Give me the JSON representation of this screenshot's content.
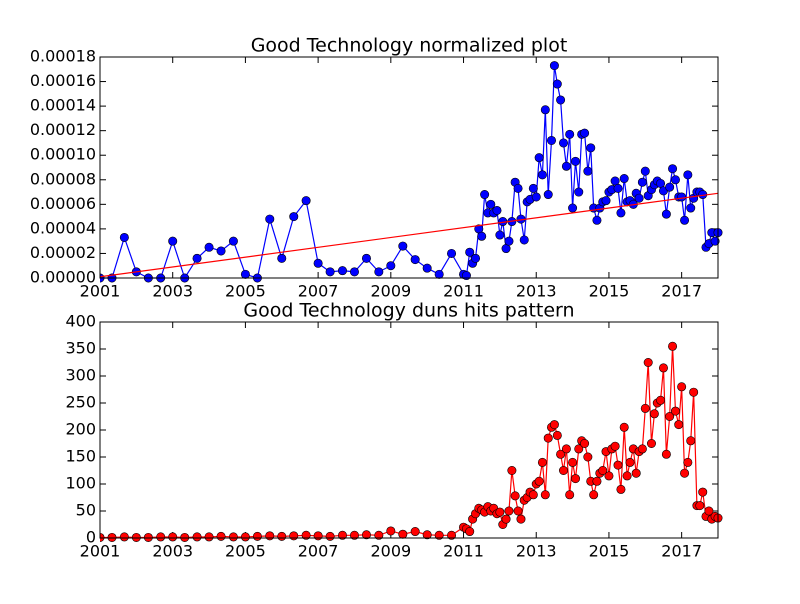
{
  "chart_data": [
    {
      "type": "line",
      "title": "Good Technology normalized plot",
      "x": [
        2001,
        2001.33,
        2001.67,
        2002,
        2002.33,
        2002.67,
        2003,
        2003.33,
        2003.67,
        2004,
        2004.33,
        2004.67,
        2005,
        2005.33,
        2005.67,
        2006,
        2006.33,
        2006.67,
        2007,
        2007.33,
        2007.67,
        2008,
        2008.33,
        2008.67,
        2009,
        2009.33,
        2009.67,
        2010,
        2010.33,
        2010.67,
        2011,
        2011.08,
        2011.17,
        2011.25,
        2011.33,
        2011.42,
        2011.5,
        2011.58,
        2011.67,
        2011.75,
        2011.83,
        2011.92,
        2012,
        2012.08,
        2012.17,
        2012.25,
        2012.33,
        2012.42,
        2012.5,
        2012.58,
        2012.67,
        2012.75,
        2012.83,
        2012.92,
        2013,
        2013.08,
        2013.17,
        2013.25,
        2013.33,
        2013.42,
        2013.5,
        2013.58,
        2013.67,
        2013.75,
        2013.83,
        2013.92,
        2014,
        2014.08,
        2014.17,
        2014.25,
        2014.33,
        2014.42,
        2014.5,
        2014.58,
        2014.67,
        2014.75,
        2014.83,
        2014.92,
        2015,
        2015.08,
        2015.17,
        2015.25,
        2015.33,
        2015.42,
        2015.5,
        2015.58,
        2015.67,
        2015.75,
        2015.83,
        2015.92,
        2016,
        2016.08,
        2016.17,
        2016.25,
        2016.33,
        2016.42,
        2016.5,
        2016.58,
        2016.67,
        2016.75,
        2016.83,
        2016.92,
        2017,
        2017.08,
        2017.17,
        2017.25,
        2017.33,
        2017.42,
        2017.5,
        2017.58,
        2017.67,
        2017.75,
        2017.83,
        2017.92,
        2018
      ],
      "series": [
        {
          "color": "#0000ff",
          "markers": true,
          "values": [
            0,
            0,
            3.3e-05,
            5e-06,
            0,
            0,
            3e-05,
            0,
            1.6e-05,
            2.5e-05,
            2.2e-05,
            3e-05,
            3e-06,
            0,
            4.8e-05,
            1.6e-05,
            5e-05,
            6.3e-05,
            1.2e-05,
            5e-06,
            6e-06,
            5e-06,
            1.6e-05,
            5e-06,
            1e-05,
            2.6e-05,
            1.5e-05,
            8e-06,
            3e-06,
            2e-05,
            3e-06,
            2e-06,
            2.1e-05,
            1.2e-05,
            1.6e-05,
            4e-05,
            3.4e-05,
            6.8e-05,
            5.3e-05,
            6e-05,
            5.3e-05,
            5.5e-05,
            3.5e-05,
            4.6e-05,
            2.4e-05,
            3e-05,
            4.6e-05,
            7.8e-05,
            7.3e-05,
            4.8e-05,
            3.1e-05,
            6.2e-05,
            6.4e-05,
            7.3e-05,
            6.6e-05,
            9.8e-05,
            8.4e-05,
            0.000137,
            6.8e-05,
            0.000112,
            0.000173,
            0.000158,
            0.000145,
            0.00011,
            9.1e-05,
            0.000117,
            5.7e-05,
            9.5e-05,
            7e-05,
            0.000117,
            0.000118,
            8.7e-05,
            0.000106,
            5.7e-05,
            4.7e-05,
            5.7e-05,
            6.2e-05,
            6.3e-05,
            7e-05,
            7.2e-05,
            7.9e-05,
            7.3e-05,
            5.3e-05,
            8.1e-05,
            6.2e-05,
            6.3e-05,
            6e-05,
            6.9e-05,
            6.5e-05,
            7.8e-05,
            8.7e-05,
            6.7e-05,
            7.2e-05,
            7.6e-05,
            7.9e-05,
            7.7e-05,
            7.1e-05,
            5.2e-05,
            7.4e-05,
            8.9e-05,
            8e-05,
            6.6e-05,
            6.6e-05,
            4.7e-05,
            8.4e-05,
            5.7e-05,
            6.5e-05,
            7e-05,
            7e-05,
            6.8e-05,
            2.5e-05,
            2.8e-05,
            3.7e-05,
            3e-05,
            3.7e-05
          ]
        },
        {
          "color": "#ff0000",
          "markers": false,
          "x": [
            2001,
            2018
          ],
          "values": [
            1e-06,
            6.9e-05
          ]
        }
      ],
      "xlim": [
        2001,
        2018
      ],
      "xticks": [
        2001,
        2003,
        2005,
        2007,
        2009,
        2011,
        2013,
        2015,
        2017
      ],
      "ylim": [
        0,
        0.00018
      ],
      "yticks": [
        {
          "value": 0,
          "label": "0.00000"
        },
        {
          "value": 2e-05,
          "label": "0.00002"
        },
        {
          "value": 4e-05,
          "label": "0.00004"
        },
        {
          "value": 6e-05,
          "label": "0.00006"
        },
        {
          "value": 8e-05,
          "label": "0.00008"
        },
        {
          "value": 0.0001,
          "label": "0.00010"
        },
        {
          "value": 0.00012,
          "label": "0.00012"
        },
        {
          "value": 0.00014,
          "label": "0.00014"
        },
        {
          "value": 0.00016,
          "label": "0.00016"
        },
        {
          "value": 0.00018,
          "label": "0.00018"
        }
      ]
    },
    {
      "type": "line",
      "title": "Good Technology duns hits pattern",
      "x": [
        2001,
        2001.33,
        2001.67,
        2002,
        2002.33,
        2002.67,
        2003,
        2003.33,
        2003.67,
        2004,
        2004.33,
        2004.67,
        2005,
        2005.33,
        2005.67,
        2006,
        2006.33,
        2006.67,
        2007,
        2007.33,
        2007.67,
        2008,
        2008.33,
        2008.67,
        2009,
        2009.33,
        2009.67,
        2010,
        2010.33,
        2010.67,
        2011,
        2011.08,
        2011.17,
        2011.25,
        2011.33,
        2011.42,
        2011.5,
        2011.58,
        2011.67,
        2011.75,
        2011.83,
        2011.92,
        2012,
        2012.08,
        2012.17,
        2012.25,
        2012.33,
        2012.42,
        2012.5,
        2012.58,
        2012.67,
        2012.75,
        2012.83,
        2012.92,
        2013,
        2013.08,
        2013.17,
        2013.25,
        2013.33,
        2013.42,
        2013.5,
        2013.58,
        2013.67,
        2013.75,
        2013.83,
        2013.92,
        2014,
        2014.08,
        2014.17,
        2014.25,
        2014.33,
        2014.42,
        2014.5,
        2014.58,
        2014.67,
        2014.75,
        2014.83,
        2014.92,
        2015,
        2015.08,
        2015.17,
        2015.25,
        2015.33,
        2015.42,
        2015.5,
        2015.58,
        2015.67,
        2015.75,
        2015.83,
        2015.92,
        2016,
        2016.08,
        2016.17,
        2016.25,
        2016.33,
        2016.42,
        2016.5,
        2016.58,
        2016.67,
        2016.75,
        2016.83,
        2016.92,
        2017,
        2017.08,
        2017.17,
        2017.25,
        2017.33,
        2017.42,
        2017.5,
        2017.58,
        2017.67,
        2017.75,
        2017.83,
        2017.92,
        2018
      ],
      "series": [
        {
          "color": "#ff0000",
          "markers": true,
          "values": [
            1,
            1,
            2,
            1,
            1,
            2,
            2,
            1,
            2,
            2,
            3,
            2,
            2,
            3,
            4,
            3,
            4,
            5,
            4,
            3,
            5,
            5,
            6,
            5,
            13,
            7,
            12,
            6,
            5,
            5,
            20,
            17,
            12,
            35,
            45,
            55,
            52,
            48,
            58,
            50,
            55,
            45,
            48,
            25,
            35,
            50,
            125,
            78,
            50,
            35,
            70,
            75,
            85,
            80,
            100,
            105,
            140,
            80,
            185,
            205,
            210,
            190,
            155,
            125,
            165,
            80,
            140,
            110,
            165,
            180,
            175,
            150,
            105,
            80,
            105,
            120,
            125,
            160,
            115,
            165,
            170,
            135,
            90,
            205,
            115,
            140,
            165,
            120,
            160,
            165,
            240,
            325,
            175,
            230,
            250,
            255,
            315,
            155,
            225,
            355,
            235,
            210,
            280,
            120,
            140,
            180,
            270,
            60,
            60,
            85,
            40,
            50,
            35,
            40,
            37
          ]
        }
      ],
      "xlim": [
        2001,
        2018
      ],
      "xticks": [
        2001,
        2003,
        2005,
        2007,
        2009,
        2011,
        2013,
        2015,
        2017
      ],
      "ylim": [
        0,
        400
      ],
      "yticks": [
        0,
        50,
        100,
        150,
        200,
        250,
        300,
        350,
        400
      ]
    }
  ]
}
